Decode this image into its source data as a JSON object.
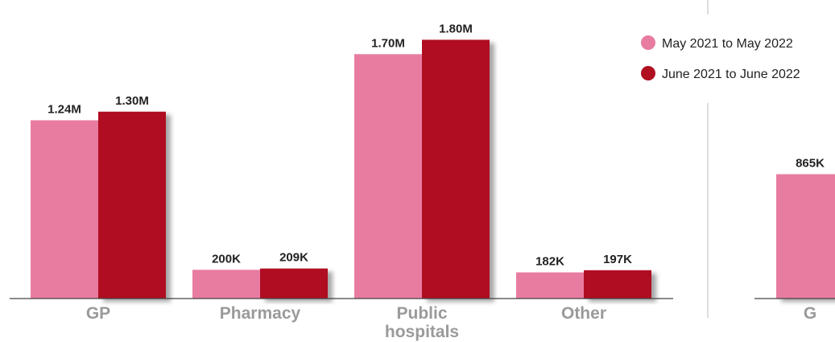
{
  "colors": {
    "series_a": "#e87ca0",
    "series_b": "#b01020",
    "axis": "#444444",
    "divider": "#bbbbbb",
    "category_text": "#9a9a9a",
    "value_text": "#222222"
  },
  "legend": {
    "items": [
      {
        "label": "May 2021 to May 2022",
        "color": "#e87ca0"
      },
      {
        "label": "June 2021 to June 2022",
        "color": "#b01020"
      }
    ]
  },
  "chart_data": [
    {
      "type": "bar",
      "categories": [
        "GP",
        "Pharmacy",
        "Public hospitals",
        "Other"
      ],
      "series": [
        {
          "name": "May 2021 to May 2022",
          "values": [
            1.24,
            0.2,
            1.7,
            0.182
          ],
          "labels": [
            "1.24M",
            "200K",
            "1.70M",
            "182K"
          ]
        },
        {
          "name": "June 2021 to June 2022",
          "values": [
            1.3,
            0.209,
            1.8,
            0.197
          ],
          "labels": [
            "1.30M",
            "209K",
            "1.80M",
            "197K"
          ]
        }
      ],
      "unit": "M",
      "ylim": [
        0,
        1.92
      ],
      "grid": false,
      "legend_position": "right"
    },
    {
      "type": "bar",
      "categories": [
        "G"
      ],
      "series": [
        {
          "name": "May 2021 to May 2022",
          "values": [
            0.865
          ],
          "labels": [
            "865K"
          ]
        }
      ],
      "unit": "M",
      "ylim": [
        0,
        1.92
      ],
      "grid": false,
      "partial": true
    }
  ]
}
